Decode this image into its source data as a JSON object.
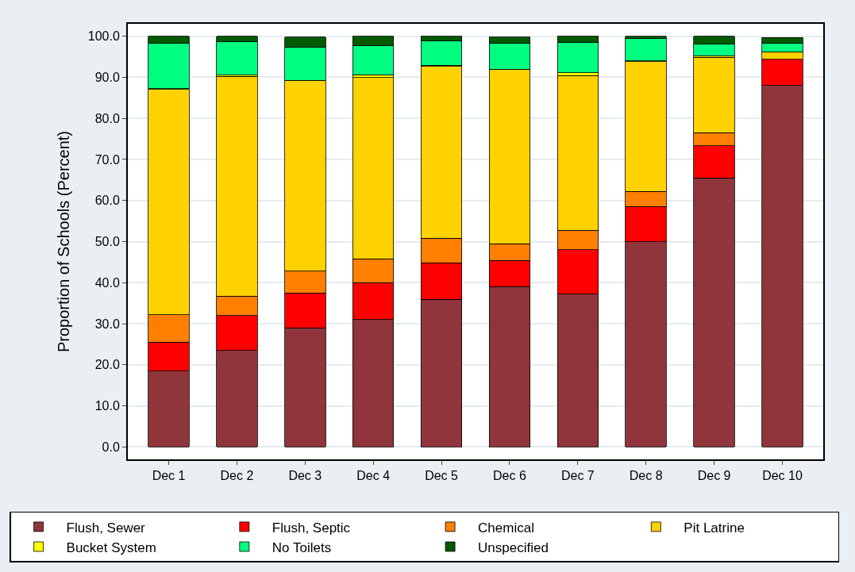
{
  "chart_data": {
    "type": "bar",
    "stacked": true,
    "ylabel": "Proportion of Schools (Percent)",
    "categories": [
      "Dec 1",
      "Dec 2",
      "Dec 3",
      "Dec 4",
      "Dec 5",
      "Dec 6",
      "Dec 7",
      "Dec 8",
      "Dec 9",
      "Dec 10"
    ],
    "series": [
      {
        "name": "Flush, Sewer",
        "color": "#90353b",
        "values": [
          18.5,
          23.5,
          29.0,
          31.0,
          36.0,
          39.0,
          37.2,
          50.0,
          65.5,
          88.0
        ]
      },
      {
        "name": "Flush, Septic",
        "color": "#ff0000",
        "values": [
          7.0,
          8.5,
          8.5,
          9.0,
          8.8,
          6.4,
          10.8,
          8.5,
          7.8,
          6.4
        ]
      },
      {
        "name": "Chemical",
        "color": "#ff7f00",
        "values": [
          6.7,
          4.7,
          5.3,
          5.8,
          6.0,
          4.1,
          4.8,
          3.7,
          3.2,
          null
        ]
      },
      {
        "name": "Pit Latrine",
        "color": "#ffd200",
        "values": [
          54.8,
          53.5,
          46.4,
          44.1,
          41.8,
          42.4,
          37.6,
          31.6,
          18.3,
          1.8
        ]
      },
      {
        "name": "Bucket System",
        "color": "#ffff00",
        "values": [
          0.2,
          0.3,
          null,
          0.7,
          0.3,
          null,
          0.7,
          0.2,
          0.4,
          null
        ]
      },
      {
        "name": "No Toilets",
        "color": "#00ff80",
        "values": [
          11.0,
          8.2,
          8.2,
          7.1,
          5.9,
          6.3,
          7.4,
          5.4,
          2.8,
          2.0
        ]
      },
      {
        "name": "Unspecified",
        "color": "#005a00",
        "values": [
          1.8,
          1.3,
          2.4,
          2.3,
          1.2,
          1.6,
          1.5,
          0.6,
          2.0,
          1.5
        ]
      }
    ],
    "ylim": [
      -3,
      103
    ],
    "yticks": [
      {
        "value": 0,
        "label": "0.0"
      },
      {
        "value": 10,
        "label": "10.0"
      },
      {
        "value": 20,
        "label": "20.0"
      },
      {
        "value": 30,
        "label": "30.0"
      },
      {
        "value": 40,
        "label": "40.0"
      },
      {
        "value": 50,
        "label": "50.0"
      },
      {
        "value": 60,
        "label": "60.0"
      },
      {
        "value": 70,
        "label": "70.0"
      },
      {
        "value": 80,
        "label": "80.0"
      },
      {
        "value": 90,
        "label": "90.0"
      },
      {
        "value": 100,
        "label": "100.0"
      }
    ],
    "grid": "y",
    "legend": "bottom"
  }
}
